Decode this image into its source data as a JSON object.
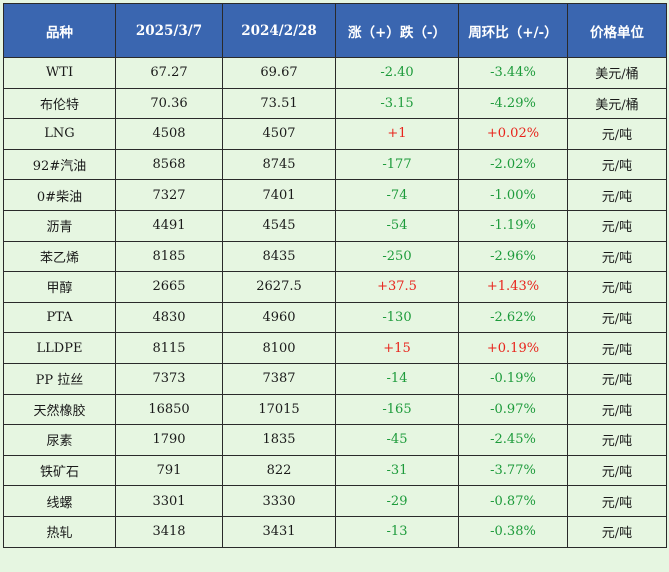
{
  "table": {
    "headers": [
      "品种",
      "2025/3/7",
      "2024/2/28",
      "涨（+）跌（-）",
      "周环比（+/-）",
      "价格单位"
    ],
    "rows": [
      {
        "name": "WTI",
        "cur": "67.27",
        "prev": "69.67",
        "change": "-2.40",
        "pct": "-3.44%",
        "unit": "美元/桶",
        "dir": "down"
      },
      {
        "name": "布伦特",
        "cur": "70.36",
        "prev": "73.51",
        "change": "-3.15",
        "pct": "-4.29%",
        "unit": "美元/桶",
        "dir": "down"
      },
      {
        "name": "LNG",
        "cur": "4508",
        "prev": "4507",
        "change": "+1",
        "pct": "+0.02%",
        "unit": "元/吨",
        "dir": "up"
      },
      {
        "name": "92#汽油",
        "cur": "8568",
        "prev": "8745",
        "change": "-177",
        "pct": "-2.02%",
        "unit": "元/吨",
        "dir": "down"
      },
      {
        "name": "0#柴油",
        "cur": "7327",
        "prev": "7401",
        "change": "-74",
        "pct": "-1.00%",
        "unit": "元/吨",
        "dir": "down"
      },
      {
        "name": "沥青",
        "cur": "4491",
        "prev": "4545",
        "change": "-54",
        "pct": "-1.19%",
        "unit": "元/吨",
        "dir": "down"
      },
      {
        "name": "苯乙烯",
        "cur": "8185",
        "prev": "8435",
        "change": "-250",
        "pct": "-2.96%",
        "unit": "元/吨",
        "dir": "down"
      },
      {
        "name": "甲醇",
        "cur": "2665",
        "prev": "2627.5",
        "change": "+37.5",
        "pct": "+1.43%",
        "unit": "元/吨",
        "dir": "up"
      },
      {
        "name": "PTA",
        "cur": "4830",
        "prev": "4960",
        "change": "-130",
        "pct": "-2.62%",
        "unit": "元/吨",
        "dir": "down"
      },
      {
        "name": "LLDPE",
        "cur": "8115",
        "prev": "8100",
        "change": "+15",
        "pct": "+0.19%",
        "unit": "元/吨",
        "dir": "up"
      },
      {
        "name": "PP 拉丝",
        "cur": "7373",
        "prev": "7387",
        "change": "-14",
        "pct": "-0.19%",
        "unit": "元/吨",
        "dir": "down"
      },
      {
        "name": "天然橡胶",
        "cur": "16850",
        "prev": "17015",
        "change": "-165",
        "pct": "-0.97%",
        "unit": "元/吨",
        "dir": "down"
      },
      {
        "name": "尿素",
        "cur": "1790",
        "prev": "1835",
        "change": "-45",
        "pct": "-2.45%",
        "unit": "元/吨",
        "dir": "down"
      },
      {
        "name": "铁矿石",
        "cur": "791",
        "prev": "822",
        "change": "-31",
        "pct": "-3.77%",
        "unit": "元/吨",
        "dir": "down"
      },
      {
        "name": "线螺",
        "cur": "3301",
        "prev": "3330",
        "change": "-29",
        "pct": "-0.87%",
        "unit": "元/吨",
        "dir": "down"
      },
      {
        "name": "热轧",
        "cur": "3418",
        "prev": "3431",
        "change": "-13",
        "pct": "-0.38%",
        "unit": "元/吨",
        "dir": "down"
      }
    ]
  },
  "colors": {
    "header_bg": "#3a66b0",
    "page_bg": "#e6f6e1",
    "up": "#e8241c",
    "down": "#1d9b3b"
  }
}
